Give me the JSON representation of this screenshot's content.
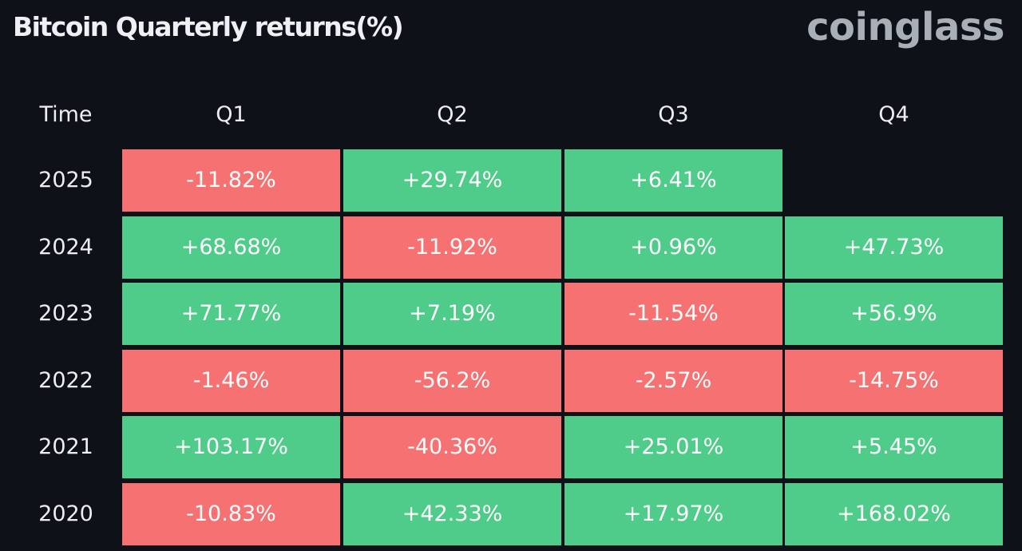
{
  "title": "Bitcoin Quarterly returns(%)",
  "logo": "coinglass",
  "colors": {
    "background": "#0e1118",
    "positive": "#4fcb8a",
    "negative": "#f67272"
  },
  "chart_data": {
    "type": "heatmap",
    "title": "Bitcoin Quarterly returns(%)",
    "row_header": "Time",
    "columns": [
      "Q1",
      "Q2",
      "Q3",
      "Q4"
    ],
    "rows": [
      {
        "year": "2025",
        "values": [
          -11.82,
          29.74,
          6.41,
          null
        ],
        "labels": [
          "-11.82%",
          "+29.74%",
          "+6.41%",
          ""
        ]
      },
      {
        "year": "2024",
        "values": [
          68.68,
          -11.92,
          0.96,
          47.73
        ],
        "labels": [
          "+68.68%",
          "-11.92%",
          "+0.96%",
          "+47.73%"
        ]
      },
      {
        "year": "2023",
        "values": [
          71.77,
          7.19,
          -11.54,
          56.9
        ],
        "labels": [
          "+71.77%",
          "+7.19%",
          "-11.54%",
          "+56.9%"
        ]
      },
      {
        "year": "2022",
        "values": [
          -1.46,
          -56.2,
          -2.57,
          -14.75
        ],
        "labels": [
          "-1.46%",
          "-56.2%",
          "-2.57%",
          "-14.75%"
        ]
      },
      {
        "year": "2021",
        "values": [
          103.17,
          -40.36,
          25.01,
          5.45
        ],
        "labels": [
          "+103.17%",
          "-40.36%",
          "+25.01%",
          "+5.45%"
        ]
      },
      {
        "year": "2020",
        "values": [
          -10.83,
          42.33,
          17.97,
          168.02
        ],
        "labels": [
          "-10.83%",
          "+42.33%",
          "+17.97%",
          "+168.02%"
        ]
      }
    ]
  }
}
